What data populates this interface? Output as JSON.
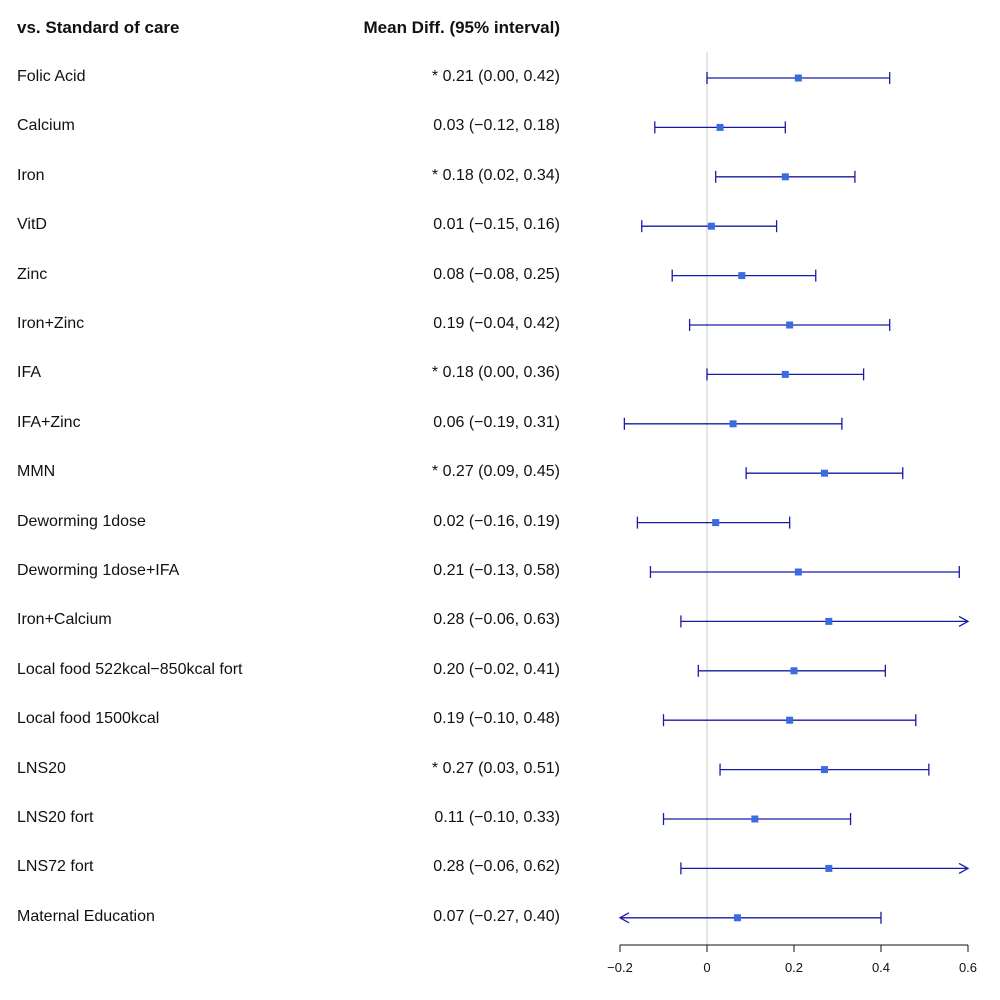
{
  "chart_data": {
    "type": "forest",
    "columns": {
      "label_header": "vs. Standard of care",
      "value_header": "Mean Diff. (95% interval)"
    },
    "rows": [
      {
        "label": "Folic Acid",
        "text": "* 0.21 (0.00, 0.42)",
        "mean": 0.21,
        "lower": 0.0,
        "upper": 0.42,
        "significant": true
      },
      {
        "label": "Calcium",
        "text": "0.03 (−0.12, 0.18)",
        "mean": 0.03,
        "lower": -0.12,
        "upper": 0.18,
        "significant": false
      },
      {
        "label": "Iron",
        "text": "* 0.18 (0.02, 0.34)",
        "mean": 0.18,
        "lower": 0.02,
        "upper": 0.34,
        "significant": true
      },
      {
        "label": "VitD",
        "text": "0.01 (−0.15, 0.16)",
        "mean": 0.01,
        "lower": -0.15,
        "upper": 0.16,
        "significant": false
      },
      {
        "label": "Zinc",
        "text": "0.08 (−0.08, 0.25)",
        "mean": 0.08,
        "lower": -0.08,
        "upper": 0.25,
        "significant": false
      },
      {
        "label": "Iron+Zinc",
        "text": "0.19 (−0.04, 0.42)",
        "mean": 0.19,
        "lower": -0.04,
        "upper": 0.42,
        "significant": false
      },
      {
        "label": "IFA",
        "text": "* 0.18 (0.00, 0.36)",
        "mean": 0.18,
        "lower": 0.0,
        "upper": 0.36,
        "significant": true
      },
      {
        "label": "IFA+Zinc",
        "text": "0.06 (−0.19, 0.31)",
        "mean": 0.06,
        "lower": -0.19,
        "upper": 0.31,
        "significant": false
      },
      {
        "label": "MMN",
        "text": "* 0.27 (0.09, 0.45)",
        "mean": 0.27,
        "lower": 0.09,
        "upper": 0.45,
        "significant": true
      },
      {
        "label": "Deworming 1dose",
        "text": "0.02 (−0.16, 0.19)",
        "mean": 0.02,
        "lower": -0.16,
        "upper": 0.19,
        "significant": false
      },
      {
        "label": "Deworming 1dose+IFA",
        "text": "0.21 (−0.13, 0.58)",
        "mean": 0.21,
        "lower": -0.13,
        "upper": 0.58,
        "significant": false
      },
      {
        "label": "Iron+Calcium",
        "text": "0.28 (−0.06, 0.63)",
        "mean": 0.28,
        "lower": -0.06,
        "upper": 0.63,
        "significant": false
      },
      {
        "label": "Local food 522kcal−850kcal fort",
        "text": "0.20 (−0.02, 0.41)",
        "mean": 0.2,
        "lower": -0.02,
        "upper": 0.41,
        "significant": false
      },
      {
        "label": "Local food 1500kcal",
        "text": "0.19 (−0.10, 0.48)",
        "mean": 0.19,
        "lower": -0.1,
        "upper": 0.48,
        "significant": false
      },
      {
        "label": "LNS20",
        "text": "* 0.27 (0.03, 0.51)",
        "mean": 0.27,
        "lower": 0.03,
        "upper": 0.51,
        "significant": true
      },
      {
        "label": "LNS20 fort",
        "text": "0.11 (−0.10, 0.33)",
        "mean": 0.11,
        "lower": -0.1,
        "upper": 0.33,
        "significant": false
      },
      {
        "label": "LNS72 fort",
        "text": "0.28 (−0.06, 0.62)",
        "mean": 0.28,
        "lower": -0.06,
        "upper": 0.62,
        "significant": false
      },
      {
        "label": "Maternal Education",
        "text": "0.07 (−0.27, 0.40)",
        "mean": 0.07,
        "lower": -0.27,
        "upper": 0.4,
        "significant": false
      }
    ],
    "xlim": [
      -0.2,
      0.6
    ],
    "xticks": [
      -0.2,
      0,
      0.2,
      0.4,
      0.6
    ],
    "xtick_labels": [
      "−0.2",
      "0",
      "0.2",
      "0.4",
      "0.6"
    ],
    "reference_line": 0,
    "colors": {
      "interval": "#1a1aa6",
      "point": "#3b6be0",
      "reference": "#dddddd",
      "axis": "#111111"
    }
  }
}
